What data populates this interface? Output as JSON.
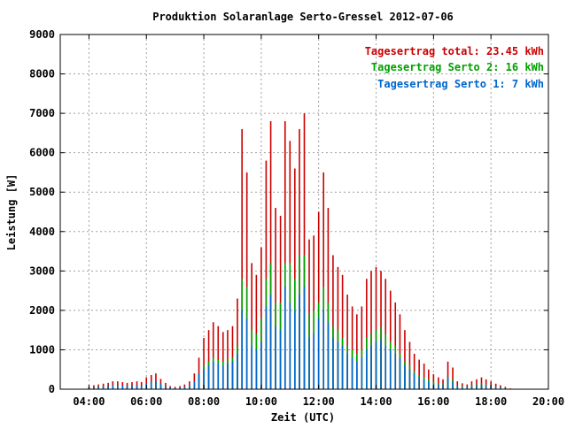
{
  "chart_data": {
    "type": "bar",
    "title": "Produktion Solaranlage Serto-Gressel 2012-07-06",
    "xlabel": "Zeit (UTC)",
    "ylabel": "Leistung [W]",
    "ylim": [
      0,
      9000
    ],
    "xlim_hours": [
      3.0,
      20.0
    ],
    "grid": true,
    "legend_position": "top-right",
    "x_tick_labels": [
      "04:00",
      "06:00",
      "08:00",
      "10:00",
      "12:00",
      "14:00",
      "16:00",
      "18:00",
      "20:00"
    ],
    "y_tick_labels": [
      "0",
      "1000",
      "2000",
      "3000",
      "4000",
      "5000",
      "6000",
      "7000",
      "8000",
      "9000"
    ],
    "legend": [
      {
        "label": "Tagesertrag total: 23.45 kWh",
        "color": "#cc0000"
      },
      {
        "label": "Tagesertrag Serto 2: 16 kWh",
        "color": "#00a000"
      },
      {
        "label": "Tagesertrag Serto 1: 7 kWh",
        "color": "#0066cc"
      }
    ],
    "series": [
      {
        "name": "total",
        "color": "#cc0000"
      },
      {
        "name": "Serto 2",
        "color": "#00a000"
      },
      {
        "name": "Serto 1",
        "color": "#0066cc"
      }
    ],
    "stacked": true,
    "x": [
      4.0,
      4.17,
      4.33,
      4.5,
      4.67,
      4.83,
      5.0,
      5.17,
      5.33,
      5.5,
      5.67,
      5.83,
      6.0,
      6.17,
      6.33,
      6.5,
      6.67,
      6.83,
      7.0,
      7.17,
      7.33,
      7.5,
      7.67,
      7.83,
      8.0,
      8.17,
      8.33,
      8.5,
      8.67,
      8.83,
      9.0,
      9.17,
      9.33,
      9.5,
      9.67,
      9.83,
      10.0,
      10.17,
      10.33,
      10.5,
      10.67,
      10.83,
      11.0,
      11.17,
      11.33,
      11.5,
      11.67,
      11.83,
      12.0,
      12.17,
      12.33,
      12.5,
      12.67,
      12.83,
      13.0,
      13.17,
      13.33,
      13.5,
      13.67,
      13.83,
      14.0,
      14.17,
      14.33,
      14.5,
      14.67,
      14.83,
      15.0,
      15.17,
      15.33,
      15.5,
      15.67,
      15.83,
      16.0,
      16.17,
      16.33,
      16.5,
      16.67,
      16.83,
      17.0,
      17.17,
      17.33,
      17.5,
      17.67,
      17.83,
      18.0,
      18.17,
      18.33,
      18.5,
      18.67
    ],
    "serto1": [
      30,
      50,
      60,
      70,
      80,
      100,
      100,
      90,
      80,
      90,
      100,
      90,
      150,
      180,
      200,
      130,
      80,
      40,
      30,
      40,
      60,
      100,
      200,
      400,
      500,
      600,
      700,
      650,
      600,
      650,
      700,
      900,
      2000,
      1800,
      1100,
      1000,
      1200,
      2100,
      2400,
      1600,
      1500,
      2600,
      2200,
      2000,
      2400,
      2600,
      1300,
      1400,
      1800,
      2000,
      1700,
      1300,
      1200,
      1100,
      900,
      800,
      700,
      800,
      1000,
      1100,
      1200,
      1250,
      1100,
      1000,
      900,
      800,
      600,
      500,
      400,
      300,
      250,
      200,
      150,
      120,
      100,
      300,
      200,
      80,
      60,
      50,
      80,
      100,
      120,
      100,
      80,
      60,
      40,
      20,
      10
    ],
    "serto2": [
      30,
      50,
      60,
      70,
      80,
      100,
      100,
      90,
      80,
      90,
      100,
      90,
      150,
      180,
      200,
      130,
      80,
      40,
      30,
      40,
      60,
      100,
      200,
      400,
      600,
      700,
      800,
      750,
      700,
      750,
      800,
      1100,
      2800,
      2600,
      1500,
      1400,
      1800,
      2800,
      3200,
      2200,
      2200,
      3200,
      3200,
      2800,
      3400,
      3400,
      1900,
      2000,
      2200,
      2600,
      2200,
      1600,
      1500,
      1300,
      1100,
      1000,
      900,
      1000,
      1300,
      1400,
      1500,
      1550,
      1400,
      1200,
      1100,
      900,
      700,
      600,
      450,
      350,
      300,
      250,
      180,
      150,
      120,
      300,
      250,
      100,
      80,
      60,
      100,
      120,
      150,
      120,
      100,
      70,
      50,
      30,
      10
    ],
    "total": [
      60,
      100,
      120,
      140,
      160,
      200,
      200,
      180,
      160,
      180,
      200,
      180,
      300,
      360,
      400,
      260,
      160,
      80,
      60,
      80,
      120,
      200,
      400,
      800,
      1300,
      1500,
      1700,
      1600,
      1450,
      1500,
      1600,
      2300,
      6600,
      5500,
      3200,
      2900,
      3600,
      5800,
      6800,
      4600,
      4400,
      6800,
      6300,
      5600,
      6600,
      7000,
      3800,
      3900,
      4500,
      5500,
      4600,
      3400,
      3100,
      2900,
      2400,
      2100,
      1900,
      2100,
      2800,
      3000,
      3100,
      3000,
      2800,
      2500,
      2200,
      1900,
      1500,
      1200,
      900,
      750,
      650,
      500,
      380,
      300,
      250,
      700,
      550,
      200,
      150,
      120,
      200,
      250,
      300,
      250,
      200,
      140,
      100,
      60,
      20
    ]
  }
}
